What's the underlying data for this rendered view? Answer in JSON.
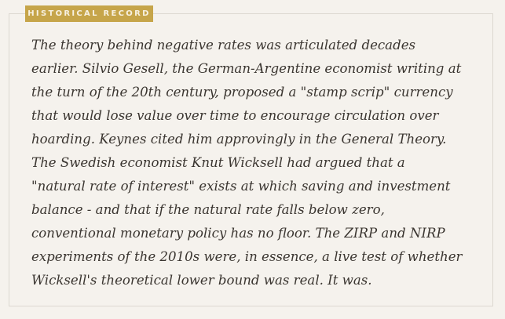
{
  "label": "HISTORICAL RECORD",
  "lines": [
    "The theory behind negative rates was articulated decades",
    "earlier. Silvio Gesell, the German-Argentine economist writing at",
    "the turn of the 20th century, proposed a \"stamp scrip\" currency",
    "that would lose value over time to encourage circulation over",
    "hoarding. Keynes cited him approvingly in the General Theory.",
    "The Swedish economist Knut Wicksell had argued that a",
    "\"natural rate of interest\" exists at which saving and investment",
    "balance - and that if the natural rate falls below zero,",
    "conventional monetary policy has no floor. The ZIRP and NIRP",
    "experiments of the 2010s were, in essence, a live test of whether",
    "Wicksell's theoretical lower bound was real. It was."
  ],
  "colors": {
    "accent": "#c6a54a",
    "background": "#f5f2ed",
    "text": "#3a3530"
  }
}
